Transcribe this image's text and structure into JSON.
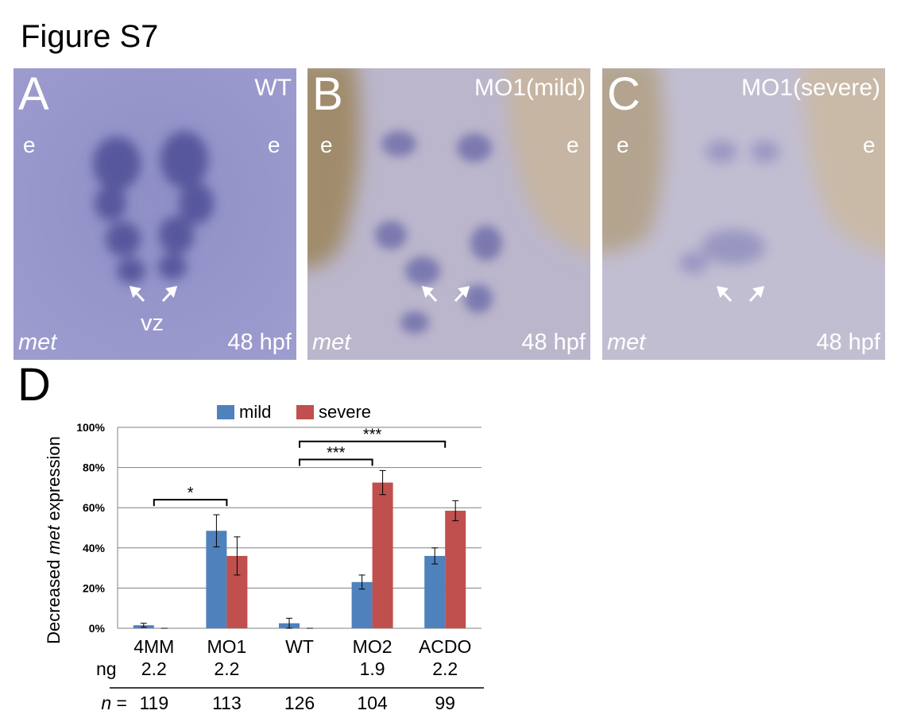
{
  "figure_title": "Figure S7",
  "panels": [
    {
      "label": "A",
      "condition": "WT",
      "left_mark": "e",
      "right_mark": "e",
      "gene": "met",
      "stage": "48 hpf",
      "vz": "vz",
      "style": "wt"
    },
    {
      "label": "B",
      "condition": "MO1(mild)",
      "left_mark": "e",
      "right_mark": "e",
      "gene": "met",
      "stage": "48 hpf",
      "vz": "",
      "style": "mild"
    },
    {
      "label": "C",
      "condition": "MO1(severe)",
      "left_mark": "e",
      "right_mark": "e",
      "gene": "met",
      "stage": "48 hpf",
      "vz": "",
      "style": "severe"
    }
  ],
  "panel_d_label": "D",
  "chart_data": {
    "type": "bar",
    "categories": [
      "4MM",
      "MO1",
      "WT",
      "MO2",
      "ACDO"
    ],
    "ng": [
      "2.2",
      "2.2",
      "",
      "1.9",
      "2.2"
    ],
    "n": [
      "119",
      "113",
      "126",
      "104",
      "99"
    ],
    "ng_label": "ng",
    "n_label": "n",
    "n_eq": " =",
    "series": [
      {
        "name": "mild",
        "color": "#4f81bd",
        "values": [
          1.5,
          48.5,
          2.5,
          23,
          36
        ],
        "errors": [
          1,
          8,
          2.5,
          3.5,
          4
        ]
      },
      {
        "name": "severe",
        "color": "#c0504d",
        "values": [
          0,
          36,
          0,
          72.5,
          58.5
        ],
        "errors": [
          0,
          9.5,
          0,
          6,
          5
        ]
      }
    ],
    "ylabel_pre": "Decreased ",
    "ylabel_italic": "met",
    "ylabel_post": " expression",
    "ylim": [
      0,
      100
    ],
    "yticks": [
      "0%",
      "20%",
      "40%",
      "60%",
      "80%",
      "100%"
    ],
    "grid": true,
    "legend_position": "top",
    "significance": [
      {
        "from": "4MM",
        "to": "MO1",
        "label": "*",
        "height": 64
      },
      {
        "from": "WT",
        "to": "MO2",
        "label": "***",
        "height": 84
      },
      {
        "from": "WT",
        "to": "ACDO",
        "label": "***",
        "height": 93
      }
    ]
  }
}
